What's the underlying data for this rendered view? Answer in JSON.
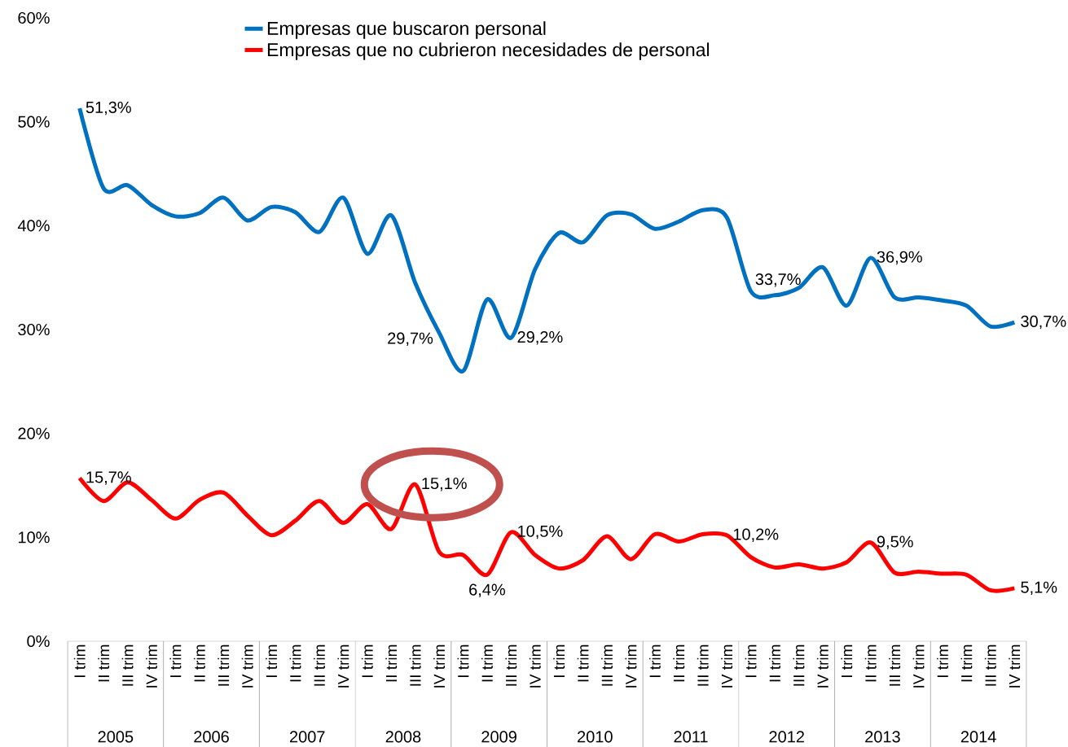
{
  "chart_data": {
    "type": "line",
    "categories": [
      "I trim",
      "II trim",
      "III trim",
      "IV trim",
      "I trim",
      "II trim",
      "III trim",
      "IV trim",
      "I trim",
      "II trim",
      "III trim",
      "IV trim",
      "I trim",
      "II trim",
      "III trim",
      "IV trim",
      "I trim",
      "II trim",
      "III trim",
      "IV trim",
      "I trim",
      "II trim",
      "III trim",
      "IV trim",
      "I trim",
      "II trim",
      "III trim",
      "IV trim",
      "I trim",
      "II trim",
      "III trim",
      "IV trim",
      "I trim",
      "II trim",
      "III trim",
      "IV trim",
      "I trim",
      "II trim",
      "III trim",
      "IV trim"
    ],
    "series": [
      {
        "name": "Empresas que buscaron personal",
        "color": "#0070c0",
        "values": [
          51.3,
          43.6,
          43.9,
          42.0,
          40.9,
          41.2,
          42.7,
          40.5,
          41.8,
          41.3,
          39.4,
          42.7,
          37.3,
          41.0,
          34.5,
          29.7,
          26.0,
          32.9,
          29.2,
          35.8,
          39.3,
          38.4,
          41.0,
          41.1,
          39.7,
          40.4,
          41.5,
          40.8,
          33.7,
          33.3,
          34.0,
          36.0,
          32.3,
          36.9,
          33.1,
          33.1,
          32.8,
          32.3,
          30.3,
          30.7
        ],
        "value_labels": [
          "51,3%",
          null,
          null,
          null,
          null,
          null,
          null,
          null,
          null,
          null,
          null,
          null,
          null,
          null,
          null,
          "29,7%",
          null,
          null,
          "29,2%",
          null,
          null,
          null,
          null,
          null,
          null,
          null,
          null,
          null,
          "33,7%",
          null,
          null,
          null,
          null,
          "36,9%",
          null,
          null,
          null,
          null,
          null,
          "30,7%"
        ]
      },
      {
        "name": "Empresas que no cubrieron necesidades de personal",
        "color": "#ff0000",
        "values": [
          15.7,
          13.5,
          15.3,
          13.6,
          11.8,
          13.6,
          14.3,
          12.1,
          10.2,
          11.6,
          13.5,
          11.4,
          13.2,
          10.8,
          15.1,
          8.6,
          8.3,
          6.4,
          10.5,
          8.3,
          7.0,
          7.8,
          10.1,
          7.9,
          10.3,
          9.6,
          10.3,
          10.2,
          8.1,
          7.1,
          7.4,
          7.0,
          7.6,
          9.5,
          6.6,
          6.7,
          6.5,
          6.4,
          4.9,
          5.1
        ],
        "value_labels": [
          "15,7%",
          null,
          null,
          null,
          null,
          null,
          null,
          null,
          null,
          null,
          null,
          null,
          null,
          null,
          "15,1%",
          null,
          null,
          "6,4%",
          "10,5%",
          null,
          null,
          null,
          null,
          null,
          null,
          null,
          null,
          "10,2%",
          null,
          null,
          null,
          null,
          null,
          "9,5%",
          null,
          null,
          null,
          null,
          null,
          "5,1%"
        ]
      }
    ],
    "ylim": [
      0,
      60
    ],
    "yticks": [
      {
        "value": 0,
        "label": "0%"
      },
      {
        "value": 10,
        "label": "10%"
      },
      {
        "value": 20,
        "label": "20%"
      },
      {
        "value": 30,
        "label": "30%"
      },
      {
        "value": 40,
        "label": "40%"
      },
      {
        "value": 50,
        "label": "50%"
      },
      {
        "value": 60,
        "label": "60%"
      }
    ],
    "annotations": [
      "2005",
      "2006",
      "2007",
      "2008",
      "2009",
      "2010",
      "2011",
      "2012",
      "2013",
      "2014"
    ],
    "legend": "top",
    "grid": false,
    "line_style": "solid",
    "marker": "none"
  }
}
